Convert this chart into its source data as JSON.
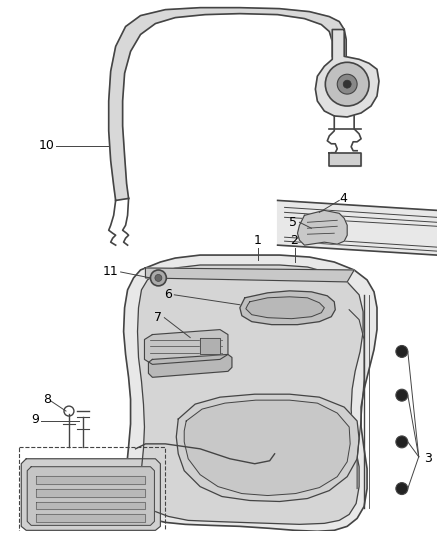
{
  "bg_color": "#ffffff",
  "line_color": "#444444",
  "label_color": "#000000",
  "fig_w": 4.38,
  "fig_h": 5.33,
  "dpi": 100
}
